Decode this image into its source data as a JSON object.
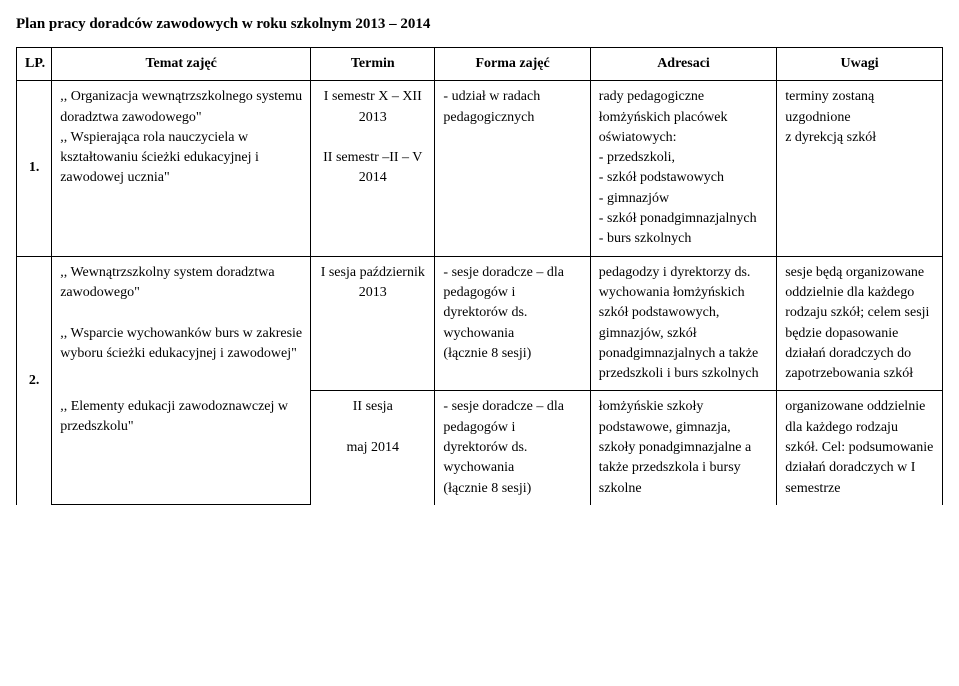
{
  "title": "Plan pracy doradców zawodowych w roku szkolnym 2013 – 2014",
  "headers": {
    "lp": "LP.",
    "topic": "Temat zajęć",
    "term": "Termin",
    "form": "Forma zajęć",
    "addressees": "Adresaci",
    "notes": "Uwagi"
  },
  "row1": {
    "lp": "1.",
    "topic": ",, Organizacja wewnątrzszkolnego systemu doradztwa zawodowego\"\n,, Wspierająca rola nauczyciela w kształtowaniu ścieżki edukacyjnej i zawodowej ucznia\"",
    "term": "I semestr X – XII 2013\n\nII semestr –II – V 2014",
    "form": "- udział w radach pedagogicznych",
    "addressees": "rady pedagogiczne łomżyńskich placówek oświatowych:\n- przedszkoli,\n- szkół podstawowych\n- gimnazjów\n- szkół ponadgimnazjalnych\n- burs szkolnych",
    "notes": "terminy zostaną uzgodnione\nz dyrekcją szkół"
  },
  "row2a": {
    "lp": "2.",
    "topic": ",, Wewnątrzszkolny system doradztwa zawodowego\"\n\n,, Wsparcie wychowanków burs w zakresie wyboru ścieżki edukacyjnej i zawodowej\"",
    "term": "I sesja październik 2013",
    "form": "- sesje doradcze – dla pedagogów i dyrektorów ds. wychowania\n(łącznie 8 sesji)",
    "addressees": "pedagodzy i dyrektorzy ds. wychowania łomżyńskich szkół podstawowych, gimnazjów, szkół ponadgimnazjalnych a także przedszkoli i burs szkolnych",
    "notes": "sesje będą organizowane oddzielnie dla każdego rodzaju szkół; celem sesji będzie dopasowanie działań doradczych do zapotrzebowania szkół"
  },
  "row2b": {
    "topic": ",, Elementy edukacji zawodoznawczej w przedszkolu\"",
    "term": "II sesja\n\nmaj 2014",
    "form": "- sesje doradcze – dla pedagogów i dyrektorów ds. wychowania\n(łącznie 8 sesji)",
    "addressees": "łomżyńskie szkoły podstawowe, gimnazja, szkoły ponadgimnazjalne a także przedszkola i bursy szkolne",
    "notes": "organizowane oddzielnie dla każdego rodzaju szkół. Cel: podsumowanie działań doradczych w I semestrze"
  }
}
